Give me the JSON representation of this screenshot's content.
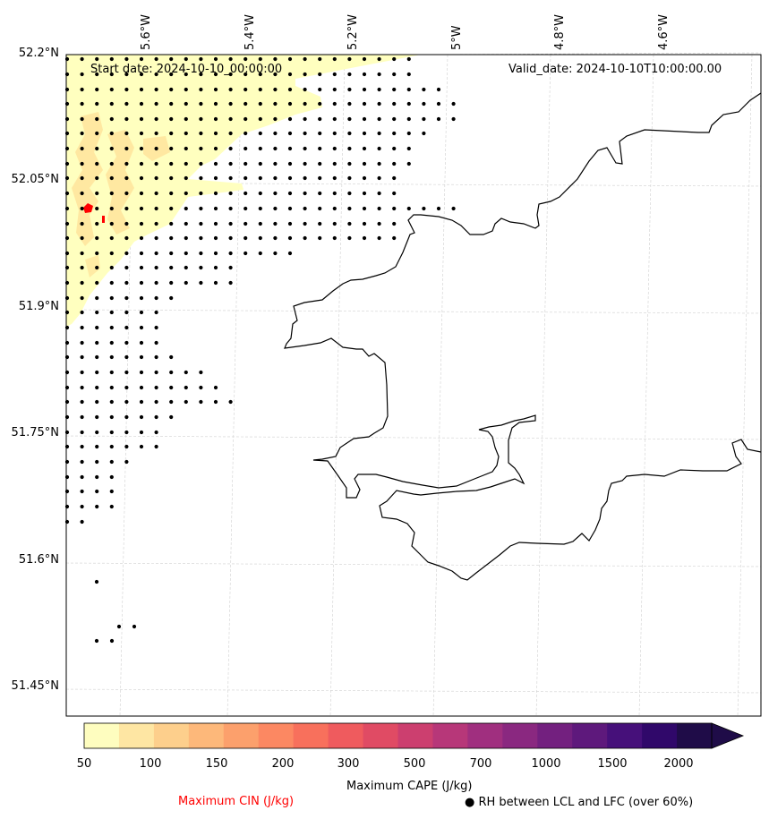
{
  "annotations": {
    "start_date": "Start date: 2024-10-10_00:00:00",
    "valid_date": "Valid_date: 2024-10-10T10:00:00.00"
  },
  "axes": {
    "lat_labels": [
      "52.2°N",
      "52.05°N",
      "51.9°N",
      "51.75°N",
      "51.6°N",
      "51.45°N"
    ],
    "lon_labels": [
      "5.6°W",
      "5.4°W",
      "5.2°W",
      "5°W",
      "4.8°W",
      "4.6°W"
    ]
  },
  "colorbar": {
    "label": "Maximum CAPE (J/kg)",
    "ticks": [
      "50",
      "100",
      "150",
      "200",
      "300",
      "500",
      "700",
      "1000",
      "1500",
      "2000"
    ],
    "colors": [
      "#fefdbf",
      "#fee6a3",
      "#fdcf8c",
      "#fdb87a",
      "#fca06c",
      "#fc8862",
      "#f8705c",
      "#ef5b5e",
      "#e04b64",
      "#cc3f6f",
      "#b73779",
      "#a02f7f",
      "#8a2880",
      "#73207f",
      "#5e197c",
      "#46107a",
      "#30086a",
      "#1f0c48"
    ],
    "extend": "max"
  },
  "legend": {
    "cin_label": "Maximum CIN (J/kg)",
    "cin_color": "#ff0000",
    "rh_marker": "●",
    "rh_label": "RH between LCL and LFC (over 60%)"
  },
  "colors": {
    "coastline": "#000000",
    "gridline": "#d0d0d0",
    "cape_low": "#ffffbf",
    "cape_mid": "#ffe49b",
    "cin": "#ff0000"
  }
}
